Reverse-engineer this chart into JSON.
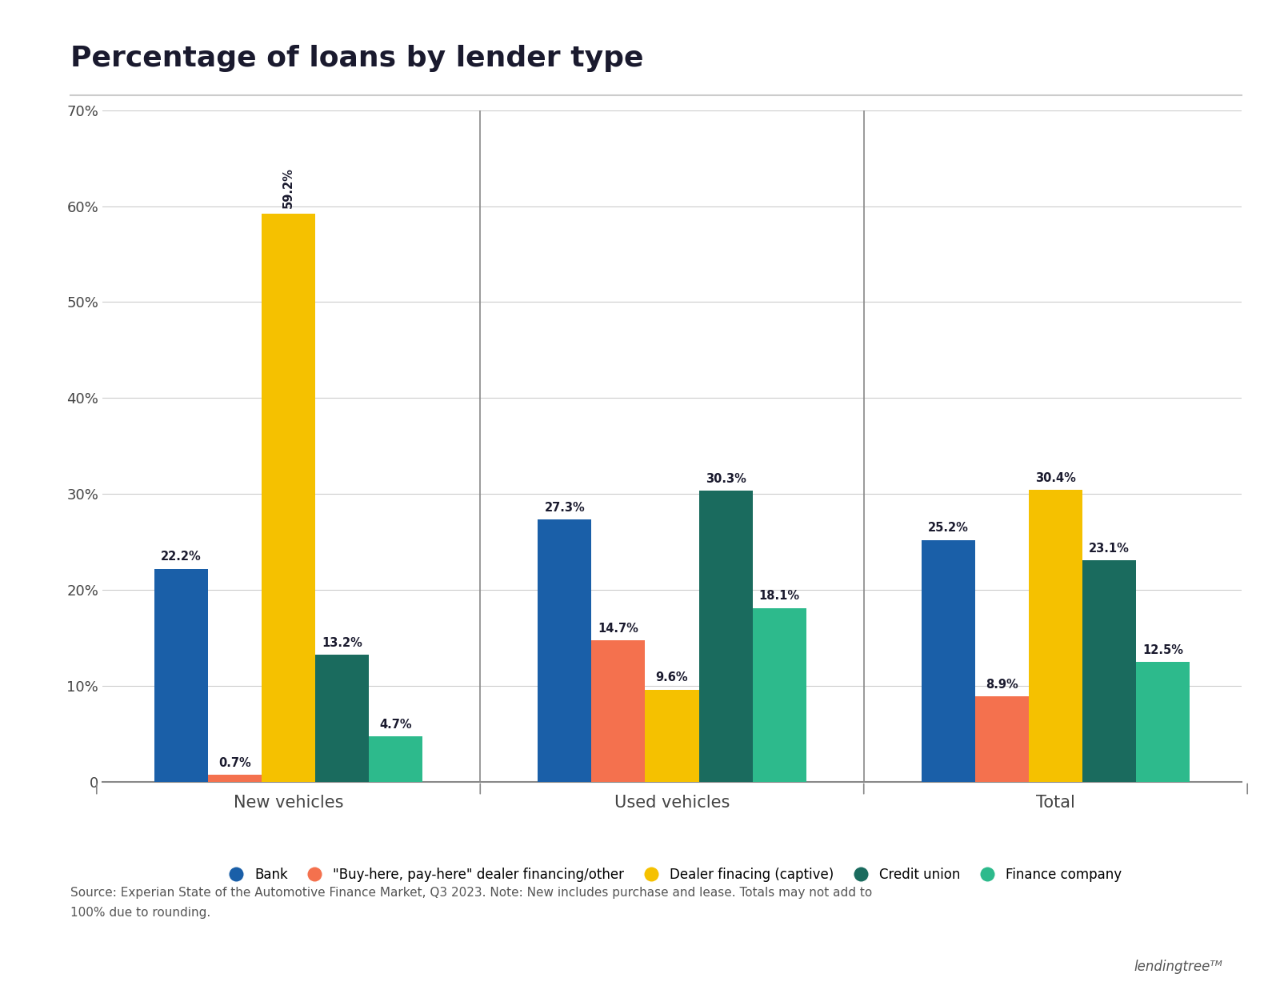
{
  "title": "Percentage of loans by lender type",
  "categories": [
    "New vehicles",
    "Used vehicles",
    "Total"
  ],
  "series": [
    {
      "name": "Bank",
      "color": "#1a5fa8",
      "values": [
        22.2,
        27.3,
        25.2
      ]
    },
    {
      "name": "\"Buy-here, pay-here\" dealer financing/other",
      "color": "#f4714e",
      "values": [
        0.7,
        14.7,
        8.9
      ]
    },
    {
      "name": "Dealer finacing (captive)",
      "color": "#f5c100",
      "values": [
        59.2,
        9.6,
        30.4
      ]
    },
    {
      "name": "Credit union",
      "color": "#1a6b5e",
      "values": [
        13.2,
        30.3,
        23.1
      ]
    },
    {
      "name": "Finance company",
      "color": "#2dba8c",
      "values": [
        4.7,
        18.1,
        12.5
      ]
    }
  ],
  "ylim": [
    0,
    70
  ],
  "yticks": [
    0,
    10,
    20,
    30,
    40,
    50,
    60,
    70
  ],
  "ytick_labels": [
    "0",
    "10%",
    "20%",
    "30%",
    "40%",
    "50%",
    "60%",
    "70%"
  ],
  "source_text": "Source: Experian State of the Automotive Finance Market, Q3 2023. Note: New includes purchase and lease. Totals may not add to\n100% due to rounding.",
  "background_color": "#ffffff",
  "title_color": "#1a1a2e",
  "bar_width": 0.14
}
